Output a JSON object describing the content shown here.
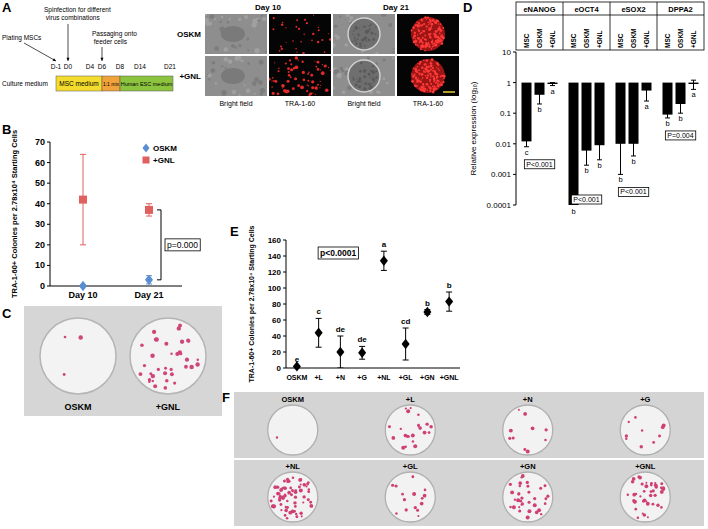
{
  "panel_labels": [
    "A",
    "B",
    "C",
    "D",
    "E",
    "F"
  ],
  "panel_a": {
    "timeline": {
      "row_label": "Culture medium",
      "days": [
        "D-1",
        "D0",
        "D4",
        "D6",
        "D8",
        "D14",
        "D21"
      ],
      "events": [
        "Plating MSCs",
        "Spinfection for different virus combinations",
        "Passaging onto feeder cells"
      ],
      "media": [
        "MSC medium",
        "1:1 mix",
        "Human ESC medium"
      ]
    },
    "images": {
      "columns": [
        "Day 10",
        "Day 21"
      ],
      "rows": [
        "OSKM",
        "+GNL"
      ],
      "captions": [
        "Bright field",
        "TRA-1-60"
      ]
    }
  },
  "panel_c": {
    "labels": [
      "OSKM",
      "+GNL"
    ]
  },
  "panel_f": {
    "labels": [
      "OSKM",
      "+L",
      "+N",
      "+G",
      "+NL",
      "+GL",
      "+GN",
      "+GNL"
    ]
  },
  "chart_data": [
    {
      "type": "scatter",
      "categories": [
        "Day 10",
        "Day 21"
      ],
      "ylabel": "TRA-1-60+ Colonies per 2.78x10⁴ Starting Cells",
      "ylim": [
        0,
        70
      ],
      "yticks": [
        0,
        10,
        20,
        30,
        40,
        50,
        60,
        70
      ],
      "legend": "upper right",
      "series": [
        {
          "name": "OSKM",
          "color": "#5a8ed0",
          "marker": "diamond",
          "values": [
            0,
            3
          ],
          "errors": [
            0.5,
            2
          ]
        },
        {
          "name": "+GNL",
          "color": "#e0605e",
          "marker": "square",
          "values": [
            42,
            37
          ],
          "errors": [
            22,
            3
          ]
        }
      ],
      "annotations": [
        "p=0.000"
      ]
    },
    {
      "type": "bar",
      "log": "y",
      "categories": [
        "eNANOG",
        "eOCT4",
        "eSOX2",
        "DPPA2"
      ],
      "ylabel": "Relative expression (log₁₀)",
      "ylim": [
        0.0001,
        10
      ],
      "yticks": [
        0.0001,
        0.001,
        0.01,
        0.1,
        1,
        10
      ],
      "series": [
        {
          "name": "MSC",
          "color": "#000000",
          "values": [
            0.012,
            0.0001,
            0.01,
            0.09
          ],
          "errors": [
            0.004,
            9e-05,
            0.009,
            0.02
          ],
          "letters": [
            "c",
            "b",
            "b",
            "b"
          ]
        },
        {
          "name": "OSKM",
          "color": "#000000",
          "values": [
            0.4,
            0.006,
            0.01,
            0.2
          ],
          "errors": [
            0.2,
            0.004,
            0.006,
            0.1
          ],
          "letters": [
            "b",
            "b",
            "b",
            "b"
          ]
        },
        {
          "name": "+GNL",
          "color": "#000000",
          "values": [
            0.9,
            0.009,
            0.55,
            0.9
          ],
          "errors": [
            0.1,
            0.006,
            0.3,
            0.3
          ],
          "letters": [
            "a",
            "b",
            "a",
            "a"
          ]
        }
      ],
      "annotations": [
        "P<0.001",
        "P<0.001",
        "P<0.001",
        "P=0.004"
      ]
    },
    {
      "type": "scatter",
      "categories": [
        "OSKM",
        "+L",
        "+N",
        "+G",
        "+NL",
        "+GL",
        "+GN",
        "+GNL"
      ],
      "ylabel": "TRA-1-60+ Colonies per 2.78x10⁴ Starting Cells",
      "ylim": [
        0,
        160
      ],
      "yticks": [
        0,
        20,
        40,
        60,
        80,
        100,
        120,
        140,
        160
      ],
      "color": "#000000",
      "marker": "diamond",
      "values": [
        2,
        44,
        20,
        19,
        134,
        30,
        70,
        83
      ],
      "errors": [
        1,
        18,
        20,
        8,
        12,
        20,
        3,
        12
      ],
      "letters": [
        "e",
        "c",
        "de",
        "de",
        "a",
        "cd",
        "b",
        "b"
      ],
      "annotations": [
        "p<0.0001"
      ]
    }
  ]
}
